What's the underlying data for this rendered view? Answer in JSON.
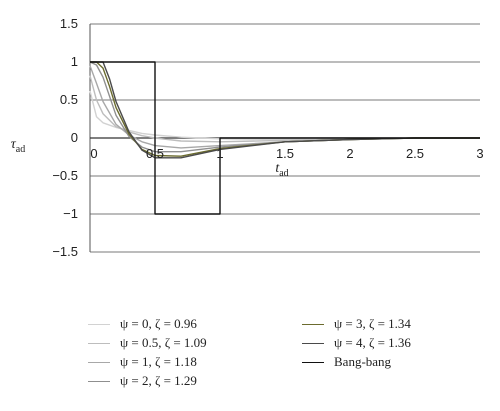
{
  "chart_data": {
    "type": "line",
    "title": "",
    "xlabel": "t",
    "xlabel_sub": "ad",
    "ylabel": "τ",
    "ylabel_sub": "ad",
    "xlim": [
      0,
      3
    ],
    "ylim": [
      -1.5,
      1.5
    ],
    "xticks": [
      "0",
      "0.5",
      "1",
      "1.5",
      "2",
      "2.5",
      "3"
    ],
    "yticks": [
      "1.5",
      "1",
      "0.5",
      "0",
      "−0.5",
      "−1",
      "−1.5"
    ],
    "grid": true,
    "legend_position": "bottom",
    "series": [
      {
        "name": "ψ = 0, ζ = 0.96",
        "color": "#d2d2d2",
        "x": [
          0,
          0.05,
          0.1,
          0.2,
          0.3,
          0.4,
          0.5,
          0.7,
          1.0,
          1.5,
          2.0,
          2.5,
          3.0
        ],
        "y": [
          0.62,
          0.28,
          0.2,
          0.14,
          0.1,
          0.06,
          0.04,
          0.01,
          -0.01,
          -0.02,
          -0.01,
          0,
          0
        ]
      },
      {
        "name": "ψ = 0.5, ζ = 1.09",
        "color": "#bdbdbd",
        "x": [
          0,
          0.05,
          0.1,
          0.2,
          0.3,
          0.4,
          0.5,
          0.7,
          1.0,
          1.5,
          2.0,
          2.5,
          3.0
        ],
        "y": [
          0.82,
          0.5,
          0.32,
          0.15,
          0.08,
          0.03,
          0,
          -0.04,
          -0.05,
          -0.03,
          -0.01,
          0,
          0
        ]
      },
      {
        "name": "ψ = 1, ζ = 1.18",
        "color": "#a8a8a8",
        "x": [
          0,
          0.05,
          0.1,
          0.2,
          0.3,
          0.4,
          0.5,
          0.7,
          1.0,
          1.5,
          2.0,
          2.5,
          3.0
        ],
        "y": [
          0.95,
          0.72,
          0.48,
          0.18,
          0.04,
          -0.05,
          -0.1,
          -0.13,
          -0.1,
          -0.05,
          -0.02,
          0,
          0
        ]
      },
      {
        "name": "ψ = 2, ζ = 1.29",
        "color": "#8f8f8f",
        "x": [
          0,
          0.05,
          0.1,
          0.15,
          0.2,
          0.3,
          0.4,
          0.5,
          0.7,
          1.0,
          1.5,
          2.0,
          2.5,
          3.0
        ],
        "y": [
          1,
          0.96,
          0.8,
          0.55,
          0.3,
          0.02,
          -0.12,
          -0.18,
          -0.18,
          -0.12,
          -0.05,
          -0.02,
          0,
          0
        ]
      },
      {
        "name": "ψ = 3, ζ = 1.34",
        "color": "#6b6b2e",
        "x": [
          0,
          0.05,
          0.1,
          0.15,
          0.2,
          0.3,
          0.4,
          0.5,
          0.7,
          1.0,
          1.5,
          2.0,
          2.5,
          3.0
        ],
        "y": [
          1,
          1,
          0.92,
          0.68,
          0.4,
          0.05,
          -0.15,
          -0.23,
          -0.24,
          -0.14,
          -0.05,
          -0.02,
          0,
          0
        ]
      },
      {
        "name": "ψ = 4, ζ = 1.36",
        "color": "#4a4a4a",
        "x": [
          0,
          0.05,
          0.1,
          0.15,
          0.2,
          0.3,
          0.4,
          0.5,
          0.7,
          1.0,
          1.5,
          2.0,
          2.5,
          3.0
        ],
        "y": [
          1,
          1,
          1,
          0.78,
          0.48,
          0.08,
          -0.16,
          -0.26,
          -0.26,
          -0.15,
          -0.05,
          -0.02,
          0,
          0
        ]
      },
      {
        "name": "Bang-bang",
        "color": "#111111",
        "x": [
          0,
          0.5,
          0.5,
          1.0,
          1.0,
          3.0
        ],
        "y": [
          1,
          1,
          -1,
          -1,
          0,
          0
        ]
      }
    ]
  }
}
